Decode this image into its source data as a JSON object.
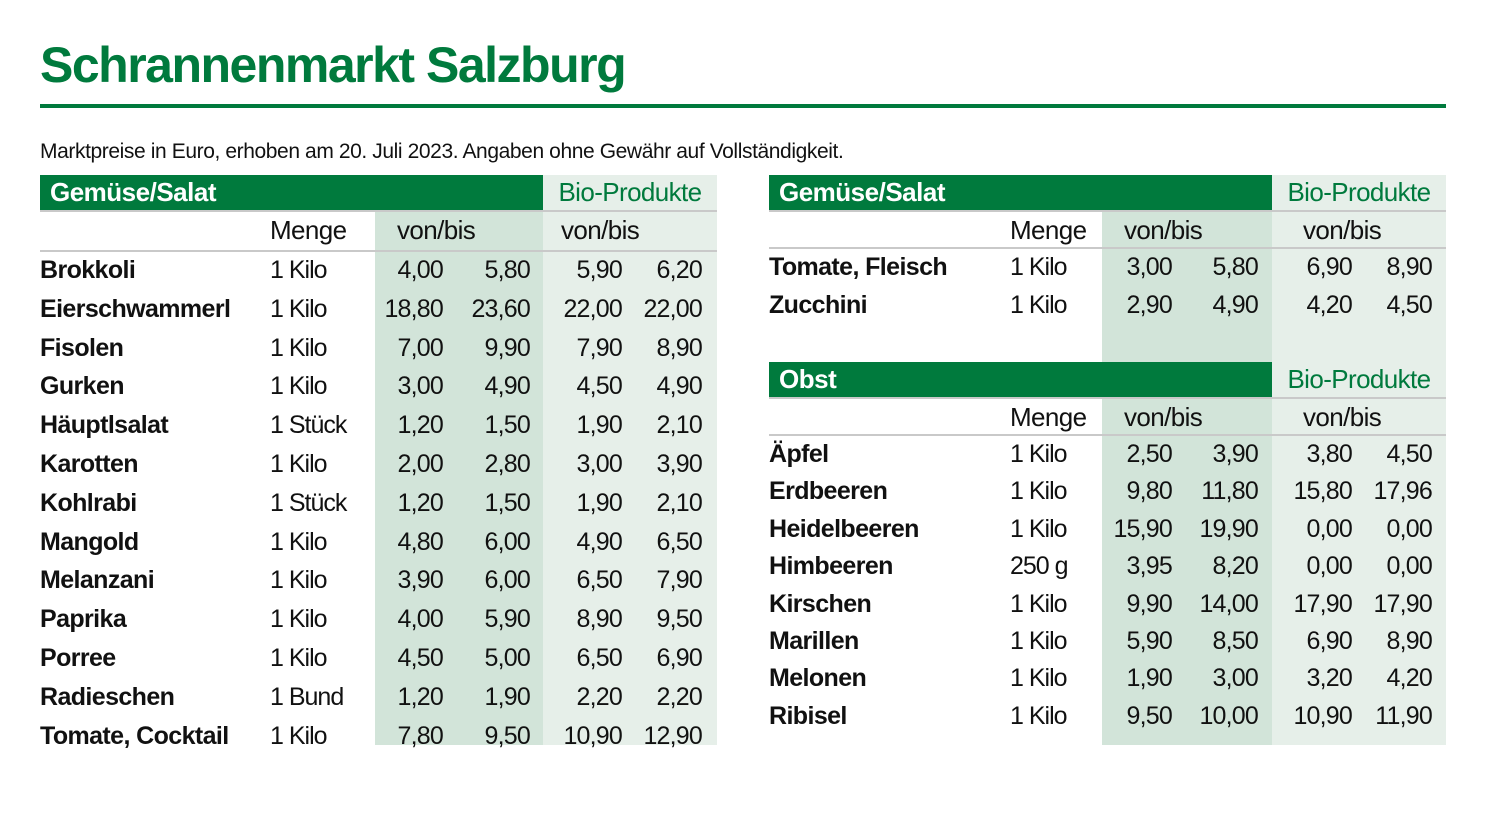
{
  "title": "Schrannenmarkt Salzburg",
  "subtitle": "Marktpreise in Euro, erhoben am 20. Juli 2023. Angaben ohne Gewähr auf Vollständigkeit.",
  "colors": {
    "accent": "#007a3d",
    "price_bg": "#d2e4d9",
    "bio_bg": "#e6efe9"
  },
  "tables": [
    {
      "heading": "Gemüse/Salat",
      "bio_label": "Bio-Produkte",
      "col_menge": "Menge",
      "col_price": "von/bis",
      "col_bio": "von/bis",
      "rows": [
        {
          "name": "Brokkoli",
          "menge": "1 Kilo",
          "von": "4,00",
          "bis": "5,80",
          "bio_von": "5,90",
          "bio_bis": "6,20"
        },
        {
          "name": "Eierschwammerl",
          "menge": "1 Kilo",
          "von": "18,80",
          "bis": "23,60",
          "bio_von": "22,00",
          "bio_bis": "22,00"
        },
        {
          "name": "Fisolen",
          "menge": "1 Kilo",
          "von": "7,00",
          "bis": "9,90",
          "bio_von": "7,90",
          "bio_bis": "8,90"
        },
        {
          "name": "Gurken",
          "menge": "1 Kilo",
          "von": "3,00",
          "bis": "4,90",
          "bio_von": "4,50",
          "bio_bis": "4,90"
        },
        {
          "name": "Häuptlsalat",
          "menge": "1 Stück",
          "von": "1,20",
          "bis": "1,50",
          "bio_von": "1,90",
          "bio_bis": "2,10"
        },
        {
          "name": "Karotten",
          "menge": "1 Kilo",
          "von": "2,00",
          "bis": "2,80",
          "bio_von": "3,00",
          "bio_bis": "3,90"
        },
        {
          "name": "Kohlrabi",
          "menge": "1 Stück",
          "von": "1,20",
          "bis": "1,50",
          "bio_von": "1,90",
          "bio_bis": "2,10"
        },
        {
          "name": "Mangold",
          "menge": "1 Kilo",
          "von": "4,80",
          "bis": "6,00",
          "bio_von": "4,90",
          "bio_bis": "6,50"
        },
        {
          "name": "Melanzani",
          "menge": "1 Kilo",
          "von": "3,90",
          "bis": "6,00",
          "bio_von": "6,50",
          "bio_bis": "7,90"
        },
        {
          "name": "Paprika",
          "menge": "1 Kilo",
          "von": "4,00",
          "bis": "5,90",
          "bio_von": "8,90",
          "bio_bis": "9,50"
        },
        {
          "name": "Porree",
          "menge": "1 Kilo",
          "von": "4,50",
          "bis": "5,00",
          "bio_von": "6,50",
          "bio_bis": "6,90"
        },
        {
          "name": "Radieschen",
          "menge": "1 Bund",
          "von": "1,20",
          "bis": "1,90",
          "bio_von": "2,20",
          "bio_bis": "2,20"
        },
        {
          "name": "Tomate, Cocktail",
          "menge": "1 Kilo",
          "von": "7,80",
          "bis": "9,50",
          "bio_von": "10,90",
          "bio_bis": "12,90"
        }
      ]
    },
    {
      "heading": "Gemüse/Salat",
      "bio_label": "Bio-Produkte",
      "col_menge": "Menge",
      "col_price": "von/bis",
      "col_bio": "von/bis",
      "rows": [
        {
          "name": "Tomate, Fleisch",
          "menge": "1 Kilo",
          "von": "3,00",
          "bis": "5,80",
          "bio_von": "6,90",
          "bio_bis": "8,90"
        },
        {
          "name": "Zucchini",
          "menge": "1 Kilo",
          "von": "2,90",
          "bis": "4,90",
          "bio_von": "4,20",
          "bio_bis": "4,50"
        }
      ]
    },
    {
      "heading": "Obst",
      "bio_label": "Bio-Produkte",
      "col_menge": "Menge",
      "col_price": "von/bis",
      "col_bio": "von/bis",
      "rows": [
        {
          "name": "Äpfel",
          "menge": "1 Kilo",
          "von": "2,50",
          "bis": "3,90",
          "bio_von": "3,80",
          "bio_bis": "4,50"
        },
        {
          "name": "Erdbeeren",
          "menge": "1 Kilo",
          "von": "9,80",
          "bis": "11,80",
          "bio_von": "15,80",
          "bio_bis": "17,96"
        },
        {
          "name": "Heidelbeeren",
          "menge": "1 Kilo",
          "von": "15,90",
          "bis": "19,90",
          "bio_von": "0,00",
          "bio_bis": "0,00"
        },
        {
          "name": "Himbeeren",
          "menge": "250 g",
          "von": "3,95",
          "bis": "8,20",
          "bio_von": "0,00",
          "bio_bis": "0,00"
        },
        {
          "name": "Kirschen",
          "menge": "1 Kilo",
          "von": "9,90",
          "bis": "14,00",
          "bio_von": "17,90",
          "bio_bis": "17,90"
        },
        {
          "name": "Marillen",
          "menge": "1 Kilo",
          "von": "5,90",
          "bis": "8,50",
          "bio_von": "6,90",
          "bio_bis": "8,90"
        },
        {
          "name": "Melonen",
          "menge": "1 Kilo",
          "von": "1,90",
          "bis": "3,00",
          "bio_von": "3,20",
          "bio_bis": "4,20"
        },
        {
          "name": "Ribisel",
          "menge": "1 Kilo",
          "von": "9,50",
          "bis": "10,00",
          "bio_von": "10,90",
          "bio_bis": "11,90"
        }
      ]
    }
  ]
}
